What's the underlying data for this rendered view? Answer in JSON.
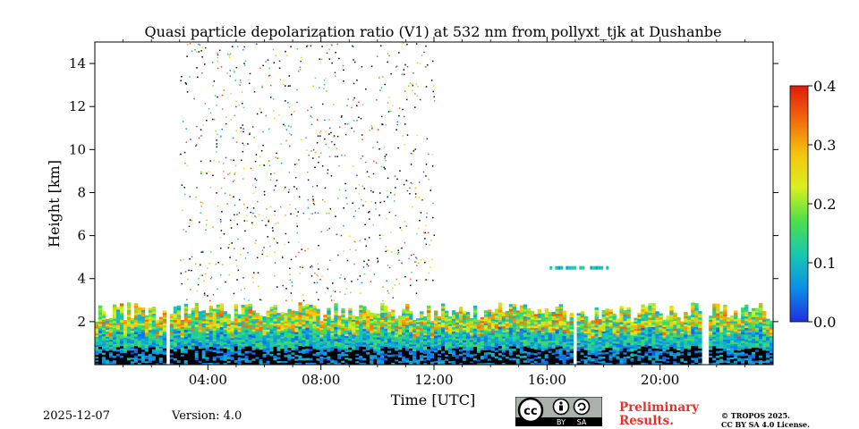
{
  "chart_data": {
    "type": "heatmap",
    "title": "Quasi particle depolarization ratio (V1) at 532 nm from pollyxt_tjk at Dushanbe",
    "xlabel": "Time [UTC]",
    "ylabel": "Height [km]",
    "xlim": [
      0,
      24
    ],
    "ylim": [
      0,
      15
    ],
    "x_ticks": [
      {
        "value": 4,
        "label": "04:00"
      },
      {
        "value": 8,
        "label": "08:00"
      },
      {
        "value": 12,
        "label": "12:00"
      },
      {
        "value": 16,
        "label": "16:00"
      },
      {
        "value": 20,
        "label": "20:00"
      }
    ],
    "y_ticks": [
      {
        "value": 2,
        "label": "2"
      },
      {
        "value": 4,
        "label": "4"
      },
      {
        "value": 6,
        "label": "6"
      },
      {
        "value": 8,
        "label": "8"
      },
      {
        "value": 10,
        "label": "10"
      },
      {
        "value": 12,
        "label": "12"
      },
      {
        "value": 14,
        "label": "14"
      }
    ],
    "colorbar": {
      "range": [
        0.0,
        0.4
      ],
      "ticks": [
        {
          "value": 0.0,
          "label": "0.0"
        },
        {
          "value": 0.1,
          "label": "0.1"
        },
        {
          "value": 0.2,
          "label": "0.2"
        },
        {
          "value": 0.3,
          "label": "0.3"
        },
        {
          "value": 0.4,
          "label": "0.4"
        }
      ],
      "colormap": [
        "#1f2fe0",
        "#0b8fe8",
        "#18c8b0",
        "#4de04a",
        "#d9f01e",
        "#f5c40d",
        "#f26a0a",
        "#e01b0b"
      ]
    },
    "layers": [
      {
        "name": "near-surface-aerosol",
        "base_km": 0.0,
        "top_km": 2.6,
        "value_range": [
          0.0,
          0.35
        ]
      },
      {
        "name": "mid-level-layer",
        "start_h": 16.0,
        "end_h": 18.1,
        "height_km": 4.5,
        "value": 0.1
      },
      {
        "name": "sparse-high-returns",
        "start_h": 3.0,
        "end_h": 12.0,
        "base_km": 3.0,
        "top_km": 15.0
      }
    ],
    "data_gaps_h": [
      2.6,
      17.0,
      21.6
    ]
  },
  "footer": {
    "date": "2025-12-07",
    "version": "Version: 4.0",
    "preliminary_line1": "Preliminary",
    "preliminary_line2": "Results.",
    "copyright_line1": "© TROPOS 2025.",
    "copyright_line2": "CC BY SA 4.0 License.",
    "license_badge": {
      "cc": "cc",
      "by": "BY",
      "sa": "SA"
    }
  },
  "colors": {
    "axis": "#000000",
    "preliminary": "#e8302a",
    "background": "#ffffff"
  }
}
